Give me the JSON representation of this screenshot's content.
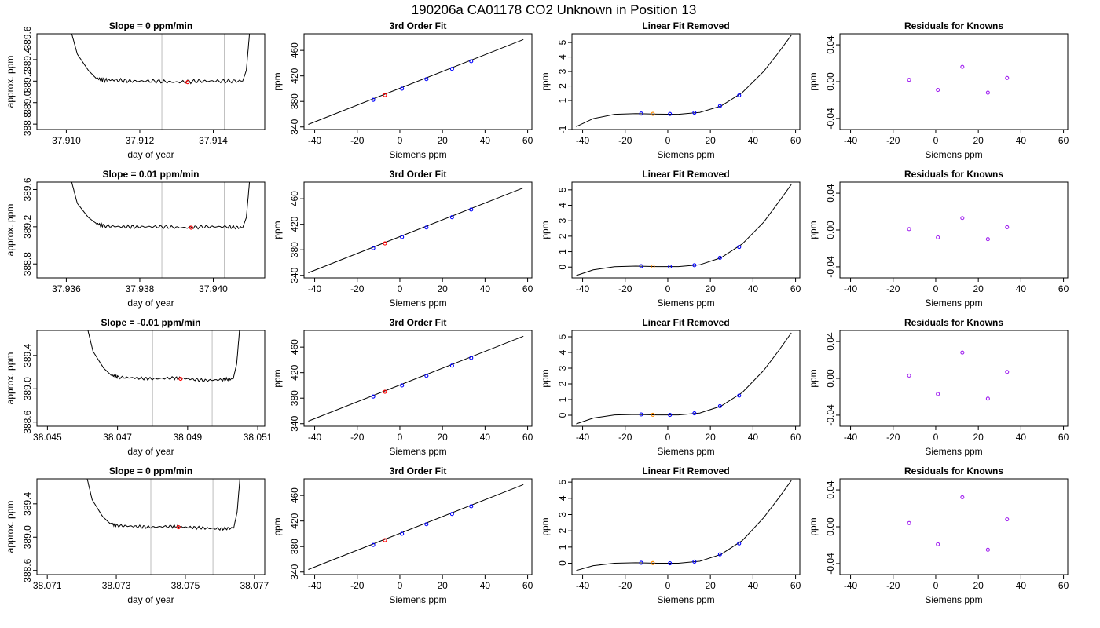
{
  "page_title": "190206a     CA01178    CO2 Unknown in Position  13",
  "colors": {
    "point_red": "#ff0000",
    "point_blue": "#0000ff",
    "point_orange": "#ff8c00",
    "point_purple": "#a020f0",
    "grid_vline": "#bebebe",
    "line": "#000000"
  },
  "chart_data": [
    {
      "type": "line",
      "title": "Slope =  0  ppm/min",
      "xlabel": "day of year",
      "ylabel": "approx. ppm",
      "xlim": [
        37.9092,
        37.9154
      ],
      "ylim": [
        388.75,
        389.64
      ],
      "xticks": [
        "37.910",
        "37.912",
        "37.914"
      ],
      "yticks": [
        "388.8",
        "389.0",
        "389.2",
        "389.4",
        "389.6"
      ],
      "vlines": [
        37.9126,
        37.9143
      ],
      "series": [
        {
          "x": [
            37.9101,
            37.9103,
            37.9106,
            37.9108,
            37.911,
            37.9113,
            37.9118,
            37.9124,
            37.913,
            37.9136,
            37.9142,
            37.9148,
            37.9149,
            37.915
          ],
          "y": [
            389.7,
            389.45,
            389.3,
            389.23,
            389.21,
            389.21,
            389.2,
            389.2,
            389.19,
            389.2,
            389.2,
            389.2,
            389.3,
            389.7
          ]
        }
      ],
      "points": [
        {
          "x": 37.9133,
          "y": 389.19,
          "color": "red"
        }
      ]
    },
    {
      "type": "line",
      "title": "3rd Order Fit",
      "xlabel": "Siemens ppm",
      "ylabel": "ppm",
      "xlim": [
        -45,
        62
      ],
      "ylim": [
        336,
        486
      ],
      "xticks": [
        "-40",
        "-20",
        "0",
        "20",
        "40",
        "60"
      ],
      "yticks": [
        "340",
        "380",
        "420",
        "460"
      ],
      "series": [
        {
          "x": [
            -43,
            58
          ],
          "y": [
            344,
            477
          ]
        }
      ],
      "points": [
        {
          "x": -12.5,
          "y": 382.5,
          "color": "blue"
        },
        {
          "x": -7,
          "y": 390,
          "color": "red"
        },
        {
          "x": 1,
          "y": 400,
          "color": "blue"
        },
        {
          "x": 12.5,
          "y": 415,
          "color": "blue"
        },
        {
          "x": 24.5,
          "y": 431,
          "color": "blue"
        },
        {
          "x": 33.5,
          "y": 443,
          "color": "blue"
        }
      ]
    },
    {
      "type": "line",
      "title": "Linear Fit Removed",
      "xlabel": "Siemens ppm",
      "ylabel": "ppm",
      "xlim": [
        -45,
        62
      ],
      "ylim": [
        -1,
        5.6
      ],
      "xticks": [
        "-40",
        "-20",
        "0",
        "20",
        "40",
        "60"
      ],
      "yticks": [
        "-1",
        "1",
        "2",
        "3",
        "4",
        "5"
      ],
      "series": [
        {
          "x": [
            -43,
            -35,
            -25,
            -15,
            -5,
            5,
            15,
            25,
            35,
            45,
            52,
            58
          ],
          "y": [
            -0.8,
            -0.25,
            0.05,
            0.1,
            0.06,
            0.05,
            0.18,
            0.62,
            1.55,
            3.0,
            4.3,
            5.5
          ]
        }
      ],
      "points": [
        {
          "x": -12.5,
          "y": 0.1,
          "color": "blue"
        },
        {
          "x": -7,
          "y": 0.08,
          "color": "orange"
        },
        {
          "x": 1,
          "y": 0.07,
          "color": "blue"
        },
        {
          "x": 12.5,
          "y": 0.16,
          "color": "blue"
        },
        {
          "x": 24.5,
          "y": 0.62,
          "color": "blue"
        },
        {
          "x": 33.5,
          "y": 1.35,
          "color": "blue"
        }
      ]
    },
    {
      "type": "scatter",
      "title": "Residuals for Knowns",
      "xlabel": "Siemens ppm",
      "ylabel": "ppm",
      "xlim": [
        -45,
        62
      ],
      "ylim": [
        -0.052,
        0.052
      ],
      "xticks": [
        "-40",
        "-20",
        "0",
        "20",
        "40",
        "60"
      ],
      "yticks": [
        "-0.04",
        "0.00",
        "0.04"
      ],
      "points": [
        {
          "x": -12.5,
          "y": 0.002,
          "color": "purple"
        },
        {
          "x": 1,
          "y": -0.009,
          "color": "purple"
        },
        {
          "x": 12.5,
          "y": 0.016,
          "color": "purple"
        },
        {
          "x": 24.5,
          "y": -0.012,
          "color": "purple"
        },
        {
          "x": 33.5,
          "y": 0.004,
          "color": "purple"
        }
      ]
    },
    {
      "type": "line",
      "title": "Slope =  0.01  ppm/min",
      "xlabel": "day of year",
      "ylabel": "approx. ppm",
      "xlim": [
        37.9352,
        37.9414
      ],
      "ylim": [
        388.65,
        389.68
      ],
      "xticks": [
        "37.936",
        "37.938",
        "37.940"
      ],
      "yticks": [
        "388.8",
        "389.2",
        "389.6"
      ],
      "vlines": [
        37.9386,
        37.9403
      ],
      "series": [
        {
          "x": [
            37.9361,
            37.9363,
            37.9366,
            37.9368,
            37.937,
            37.9375,
            37.938,
            37.9386,
            37.9392,
            37.9398,
            37.9404,
            37.9408,
            37.9409,
            37.941
          ],
          "y": [
            389.75,
            389.45,
            389.3,
            389.24,
            389.21,
            389.2,
            389.2,
            389.2,
            389.19,
            389.2,
            389.2,
            389.19,
            389.3,
            389.75
          ]
        }
      ],
      "points": [
        {
          "x": 37.9394,
          "y": 389.19,
          "color": "red"
        }
      ]
    },
    {
      "type": "line",
      "title": "3rd Order Fit",
      "xlabel": "Siemens ppm",
      "ylabel": "ppm",
      "xlim": [
        -45,
        62
      ],
      "ylim": [
        336,
        486
      ],
      "xticks": [
        "-40",
        "-20",
        "0",
        "20",
        "40",
        "60"
      ],
      "yticks": [
        "340",
        "380",
        "420",
        "460"
      ],
      "series": [
        {
          "x": [
            -43,
            58
          ],
          "y": [
            344,
            477
          ]
        }
      ],
      "points": [
        {
          "x": -12.5,
          "y": 382.5,
          "color": "blue"
        },
        {
          "x": -7,
          "y": 390,
          "color": "red"
        },
        {
          "x": 1,
          "y": 400,
          "color": "blue"
        },
        {
          "x": 12.5,
          "y": 415,
          "color": "blue"
        },
        {
          "x": 24.5,
          "y": 431,
          "color": "blue"
        },
        {
          "x": 33.5,
          "y": 443,
          "color": "blue"
        }
      ]
    },
    {
      "type": "line",
      "title": "Linear Fit Removed",
      "xlabel": "Siemens ppm",
      "ylabel": "ppm",
      "xlim": [
        -45,
        62
      ],
      "ylim": [
        -0.7,
        5.5
      ],
      "xticks": [
        "-40",
        "-20",
        "0",
        "20",
        "40",
        "60"
      ],
      "yticks": [
        "0",
        "1",
        "2",
        "3",
        "4",
        "5"
      ],
      "series": [
        {
          "x": [
            -43,
            -35,
            -25,
            -15,
            -5,
            5,
            15,
            25,
            35,
            45,
            52,
            58
          ],
          "y": [
            -0.55,
            -0.18,
            0.02,
            0.06,
            0.03,
            0.03,
            0.15,
            0.6,
            1.5,
            2.9,
            4.2,
            5.35
          ]
        }
      ],
      "points": [
        {
          "x": -12.5,
          "y": 0.06,
          "color": "blue"
        },
        {
          "x": -7,
          "y": 0.04,
          "color": "orange"
        },
        {
          "x": 1,
          "y": 0.03,
          "color": "blue"
        },
        {
          "x": 12.5,
          "y": 0.12,
          "color": "blue"
        },
        {
          "x": 24.5,
          "y": 0.6,
          "color": "blue"
        },
        {
          "x": 33.5,
          "y": 1.3,
          "color": "blue"
        }
      ]
    },
    {
      "type": "scatter",
      "title": "Residuals for Knowns",
      "xlabel": "Siemens ppm",
      "ylabel": "ppm",
      "xlim": [
        -45,
        62
      ],
      "ylim": [
        -0.052,
        0.052
      ],
      "xticks": [
        "-40",
        "-20",
        "0",
        "20",
        "40",
        "60"
      ],
      "yticks": [
        "-0.04",
        "0.00",
        "0.04"
      ],
      "points": [
        {
          "x": -12.5,
          "y": 0.001,
          "color": "purple"
        },
        {
          "x": 1,
          "y": -0.008,
          "color": "purple"
        },
        {
          "x": 12.5,
          "y": 0.013,
          "color": "purple"
        },
        {
          "x": 24.5,
          "y": -0.01,
          "color": "purple"
        },
        {
          "x": 33.5,
          "y": 0.003,
          "color": "purple"
        }
      ]
    },
    {
      "type": "line",
      "title": "Slope =  -0.01  ppm/min",
      "xlabel": "day of year",
      "ylabel": "approx. ppm",
      "xlim": [
        38.0447,
        38.0512
      ],
      "ylim": [
        388.55,
        389.7
      ],
      "xticks": [
        "38.045",
        "38.047",
        "38.049",
        "38.051"
      ],
      "yticks": [
        "388.6",
        "389.0",
        "389.4"
      ],
      "vlines": [
        38.048,
        38.0497
      ],
      "series": [
        {
          "x": [
            38.0461,
            38.0463,
            38.0466,
            38.0468,
            38.047,
            38.0475,
            38.048,
            38.0486,
            38.049,
            38.0495,
            38.05,
            38.0503,
            38.0504,
            38.0505
          ],
          "y": [
            389.8,
            389.45,
            389.25,
            389.17,
            389.14,
            389.13,
            389.12,
            389.13,
            389.12,
            389.1,
            389.11,
            389.12,
            389.3,
            389.8
          ]
        }
      ],
      "points": [
        {
          "x": 38.0488,
          "y": 389.12,
          "color": "red"
        }
      ]
    },
    {
      "type": "line",
      "title": "3rd Order Fit",
      "xlabel": "Siemens ppm",
      "ylabel": "ppm",
      "xlim": [
        -45,
        62
      ],
      "ylim": [
        336,
        486
      ],
      "xticks": [
        "-40",
        "-20",
        "0",
        "20",
        "40",
        "60"
      ],
      "yticks": [
        "340",
        "380",
        "420",
        "460"
      ],
      "series": [
        {
          "x": [
            -43,
            58
          ],
          "y": [
            344,
            477
          ]
        }
      ],
      "points": [
        {
          "x": -12.5,
          "y": 382.5,
          "color": "blue"
        },
        {
          "x": -7,
          "y": 390,
          "color": "red"
        },
        {
          "x": 1,
          "y": 400,
          "color": "blue"
        },
        {
          "x": 12.5,
          "y": 415,
          "color": "blue"
        },
        {
          "x": 24.5,
          "y": 431,
          "color": "blue"
        },
        {
          "x": 33.5,
          "y": 443,
          "color": "blue"
        }
      ]
    },
    {
      "type": "line",
      "title": "Linear Fit Removed",
      "xlabel": "Siemens ppm",
      "ylabel": "ppm",
      "xlim": [
        -45,
        62
      ],
      "ylim": [
        -0.7,
        5.4
      ],
      "xticks": [
        "-40",
        "-20",
        "0",
        "20",
        "40",
        "60"
      ],
      "yticks": [
        "0",
        "1",
        "2",
        "3",
        "4",
        "5"
      ],
      "series": [
        {
          "x": [
            -43,
            -35,
            -25,
            -15,
            -5,
            5,
            15,
            25,
            35,
            45,
            52,
            58
          ],
          "y": [
            -0.55,
            -0.18,
            0.02,
            0.05,
            0.02,
            0.02,
            0.14,
            0.58,
            1.45,
            2.85,
            4.1,
            5.25
          ]
        }
      ],
      "points": [
        {
          "x": -12.5,
          "y": 0.05,
          "color": "blue"
        },
        {
          "x": -7,
          "y": 0.03,
          "color": "orange"
        },
        {
          "x": 1,
          "y": 0.02,
          "color": "blue"
        },
        {
          "x": 12.5,
          "y": 0.12,
          "color": "blue"
        },
        {
          "x": 24.5,
          "y": 0.58,
          "color": "blue"
        },
        {
          "x": 33.5,
          "y": 1.25,
          "color": "blue"
        }
      ]
    },
    {
      "type": "scatter",
      "title": "Residuals for Knowns",
      "xlabel": "Siemens ppm",
      "ylabel": "ppm",
      "xlim": [
        -45,
        62
      ],
      "ylim": [
        -0.052,
        0.052
      ],
      "xticks": [
        "-40",
        "-20",
        "0",
        "20",
        "40",
        "60"
      ],
      "yticks": [
        "-0.04",
        "0.00",
        "0.04"
      ],
      "points": [
        {
          "x": -12.5,
          "y": 0.003,
          "color": "purple"
        },
        {
          "x": 1,
          "y": -0.017,
          "color": "purple"
        },
        {
          "x": 12.5,
          "y": 0.028,
          "color": "purple"
        },
        {
          "x": 24.5,
          "y": -0.022,
          "color": "purple"
        },
        {
          "x": 33.5,
          "y": 0.007,
          "color": "purple"
        }
      ]
    },
    {
      "type": "line",
      "title": "Slope =  0  ppm/min",
      "xlabel": "day of year",
      "ylabel": "approx. ppm",
      "xlim": [
        38.0707,
        38.0773
      ],
      "ylim": [
        388.55,
        389.7
      ],
      "xticks": [
        "38.071",
        "38.073",
        "38.075",
        "38.077"
      ],
      "yticks": [
        "388.6",
        "389.0",
        "389.4"
      ],
      "vlines": [
        38.074,
        38.0758
      ],
      "series": [
        {
          "x": [
            38.0721,
            38.0723,
            38.0726,
            38.0728,
            38.073,
            38.0735,
            38.074,
            38.0746,
            38.075,
            38.0755,
            38.076,
            38.0764,
            38.0765,
            38.0766
          ],
          "y": [
            389.8,
            389.45,
            389.25,
            389.17,
            389.14,
            389.13,
            389.12,
            389.13,
            389.12,
            389.11,
            389.1,
            389.11,
            389.3,
            389.8
          ]
        }
      ],
      "points": [
        {
          "x": 38.0748,
          "y": 389.12,
          "color": "red"
        }
      ]
    },
    {
      "type": "line",
      "title": "3rd Order Fit",
      "xlabel": "Siemens ppm",
      "ylabel": "ppm",
      "xlim": [
        -45,
        62
      ],
      "ylim": [
        336,
        486
      ],
      "xticks": [
        "-40",
        "-20",
        "0",
        "20",
        "40",
        "60"
      ],
      "yticks": [
        "340",
        "380",
        "420",
        "460"
      ],
      "series": [
        {
          "x": [
            -43,
            58
          ],
          "y": [
            344,
            477
          ]
        }
      ],
      "points": [
        {
          "x": -12.5,
          "y": 382.5,
          "color": "blue"
        },
        {
          "x": -7,
          "y": 390,
          "color": "red"
        },
        {
          "x": 1,
          "y": 400,
          "color": "blue"
        },
        {
          "x": 12.5,
          "y": 415,
          "color": "blue"
        },
        {
          "x": 24.5,
          "y": 431,
          "color": "blue"
        },
        {
          "x": 33.5,
          "y": 443,
          "color": "blue"
        }
      ]
    },
    {
      "type": "line",
      "title": "Linear Fit Removed",
      "xlabel": "Siemens ppm",
      "ylabel": "ppm",
      "xlim": [
        -45,
        62
      ],
      "ylim": [
        -0.7,
        5.2
      ],
      "xticks": [
        "-40",
        "-20",
        "0",
        "20",
        "40",
        "60"
      ],
      "yticks": [
        "0",
        "1",
        "2",
        "3",
        "4",
        "5"
      ],
      "series": [
        {
          "x": [
            -43,
            -35,
            -25,
            -15,
            -5,
            5,
            15,
            25,
            35,
            45,
            52,
            58
          ],
          "y": [
            -0.45,
            -0.15,
            0.0,
            0.03,
            0.0,
            0.0,
            0.12,
            0.55,
            1.4,
            2.8,
            4.0,
            5.1
          ]
        }
      ],
      "points": [
        {
          "x": -12.5,
          "y": 0.03,
          "color": "blue"
        },
        {
          "x": -7,
          "y": 0.01,
          "color": "orange"
        },
        {
          "x": 1,
          "y": 0.0,
          "color": "blue"
        },
        {
          "x": 12.5,
          "y": 0.1,
          "color": "blue"
        },
        {
          "x": 24.5,
          "y": 0.55,
          "color": "blue"
        },
        {
          "x": 33.5,
          "y": 1.22,
          "color": "blue"
        }
      ]
    },
    {
      "type": "scatter",
      "title": "Residuals for Knowns",
      "xlabel": "Siemens ppm",
      "ylabel": "ppm",
      "xlim": [
        -45,
        62
      ],
      "ylim": [
        -0.052,
        0.052
      ],
      "xticks": [
        "-40",
        "-20",
        "0",
        "20",
        "40",
        "60"
      ],
      "yticks": [
        "-0.04",
        "0.00",
        "0.04"
      ],
      "points": [
        {
          "x": -12.5,
          "y": 0.004,
          "color": "purple"
        },
        {
          "x": 1,
          "y": -0.019,
          "color": "purple"
        },
        {
          "x": 12.5,
          "y": 0.032,
          "color": "purple"
        },
        {
          "x": 24.5,
          "y": -0.025,
          "color": "purple"
        },
        {
          "x": 33.5,
          "y": 0.008,
          "color": "purple"
        }
      ]
    }
  ]
}
